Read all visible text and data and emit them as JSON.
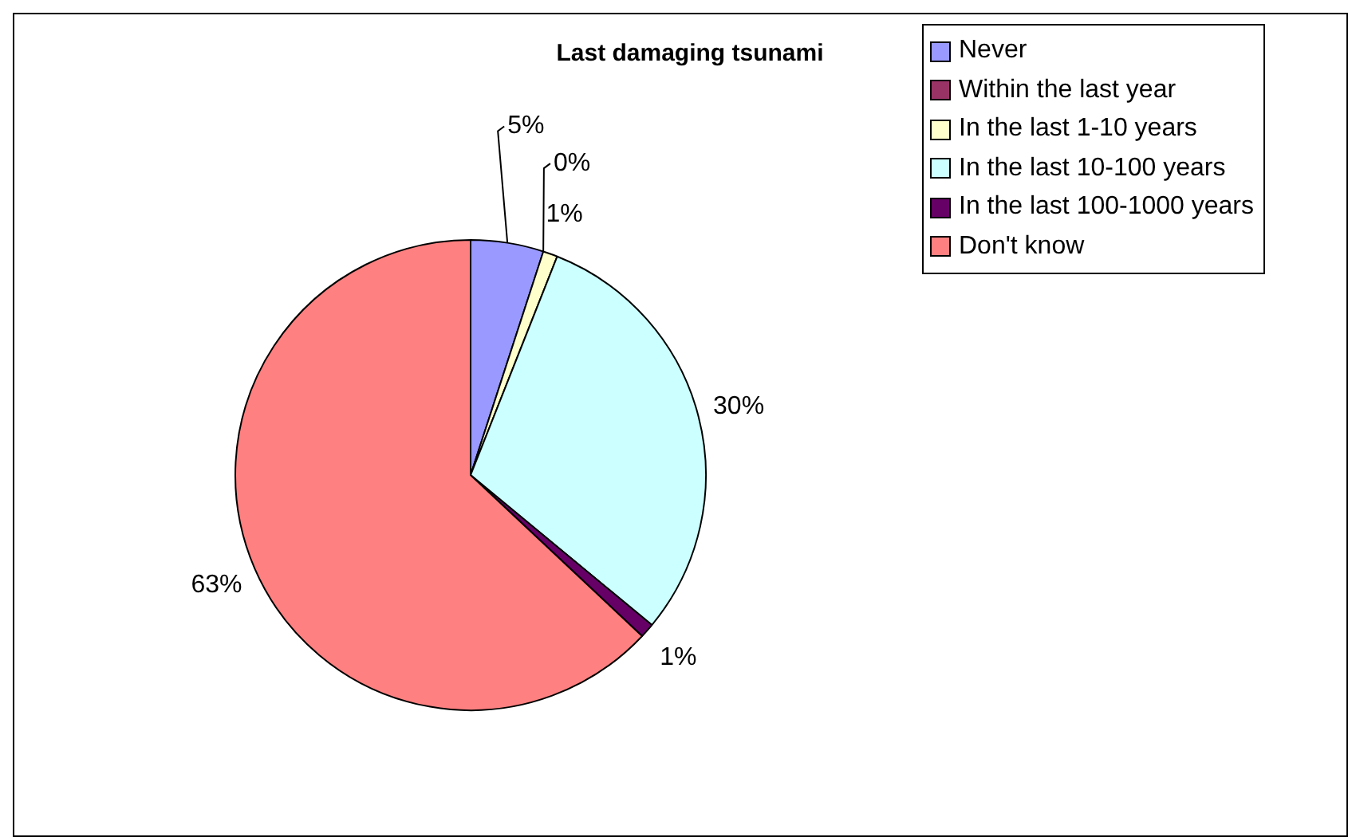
{
  "chart_data": {
    "type": "pie",
    "title": "Last damaging tsunami",
    "categories": [
      "Never",
      "Within the last year",
      "In the last 1-10 years",
      "In the last 10-100 years",
      "In the last 100-1000 years",
      "Don't know"
    ],
    "values": [
      5,
      0,
      1,
      30,
      1,
      63
    ],
    "value_labels": [
      "5%",
      "0%",
      "1%",
      "30%",
      "1%",
      "63%"
    ],
    "colors": [
      "#9999ff",
      "#993366",
      "#ffffcc",
      "#ccffff",
      "#660066",
      "#ff8080"
    ],
    "legend": "top right"
  }
}
